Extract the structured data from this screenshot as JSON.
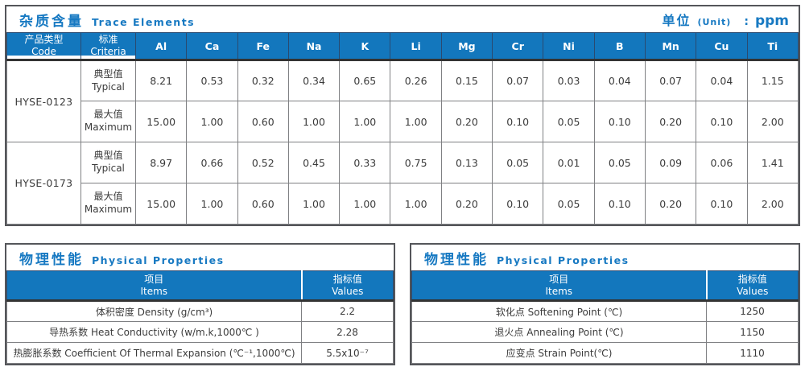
{
  "colors": {
    "header_blue": "#1377bd",
    "title_blue": "#1779c2",
    "border_dark": "#55565a",
    "border_light": "#7f8083",
    "text": "#3b3b3b"
  },
  "trace_elements": {
    "title_zh": "杂质含量",
    "title_en": "Trace Elements",
    "unit_label_zh": "单位",
    "unit_label_en": "(Unit)",
    "unit_separator": ":",
    "unit_value": "ppm",
    "header": {
      "col1_zh": "产品类型",
      "col1_en": "Code",
      "col2_zh": "标准",
      "col2_en": "Criteria"
    },
    "columns": [
      "Al",
      "Ca",
      "Fe",
      "Na",
      "K",
      "Li",
      "Mg",
      "Cr",
      "Ni",
      "B",
      "Mn",
      "Cu",
      "Ti"
    ],
    "products": [
      {
        "code": "HYSE-0123",
        "rows": [
          {
            "label_zh": "典型值",
            "label_en": "Typical",
            "values": [
              "8.21",
              "0.53",
              "0.32",
              "0.34",
              "0.65",
              "0.26",
              "0.15",
              "0.07",
              "0.03",
              "0.04",
              "0.07",
              "0.04",
              "1.15"
            ]
          },
          {
            "label_zh": "最大值",
            "label_en": "Maximum",
            "values": [
              "15.00",
              "1.00",
              "0.60",
              "1.00",
              "1.00",
              "1.00",
              "0.20",
              "0.10",
              "0.05",
              "0.10",
              "0.20",
              "0.10",
              "2.00"
            ]
          }
        ]
      },
      {
        "code": "HYSE-0173",
        "rows": [
          {
            "label_zh": "典型值",
            "label_en": "Typical",
            "values": [
              "8.97",
              "0.66",
              "0.52",
              "0.45",
              "0.33",
              "0.75",
              "0.13",
              "0.05",
              "0.01",
              "0.05",
              "0.09",
              "0.06",
              "1.41"
            ]
          },
          {
            "label_zh": "最大值",
            "label_en": "Maximum",
            "values": [
              "15.00",
              "1.00",
              "0.60",
              "1.00",
              "1.00",
              "1.00",
              "0.20",
              "0.10",
              "0.05",
              "0.10",
              "0.20",
              "0.10",
              "2.00"
            ]
          }
        ]
      }
    ]
  },
  "physical_left": {
    "title_zh": "物理性能",
    "title_en": "Physical Properties",
    "header": {
      "items_zh": "项目",
      "items_en": "Items",
      "values_zh": "指标值",
      "values_en": "Values"
    },
    "rows": [
      {
        "item": "体积密度 Density (g/cm³)",
        "value": "2.2"
      },
      {
        "item": "导热系数 Heat Conductivity (w/m.k,1000℃ )",
        "value": "2.28"
      },
      {
        "item": "热膨胀系数 Coefficient Of Thermal Expansion (℃⁻¹,1000℃)",
        "value": "5.5x10⁻⁷"
      }
    ]
  },
  "physical_right": {
    "title_zh": "物理性能",
    "title_en": "Physical Properties",
    "header": {
      "items_zh": "项目",
      "items_en": "Items",
      "values_zh": "指标值",
      "values_en": "Values"
    },
    "rows": [
      {
        "item": "软化点 Softening Point (℃)",
        "value": "1250"
      },
      {
        "item": "退火点 Annealing Point (℃)",
        "value": "1150"
      },
      {
        "item": "应变点 Strain Point(℃)",
        "value": "1110"
      }
    ]
  }
}
